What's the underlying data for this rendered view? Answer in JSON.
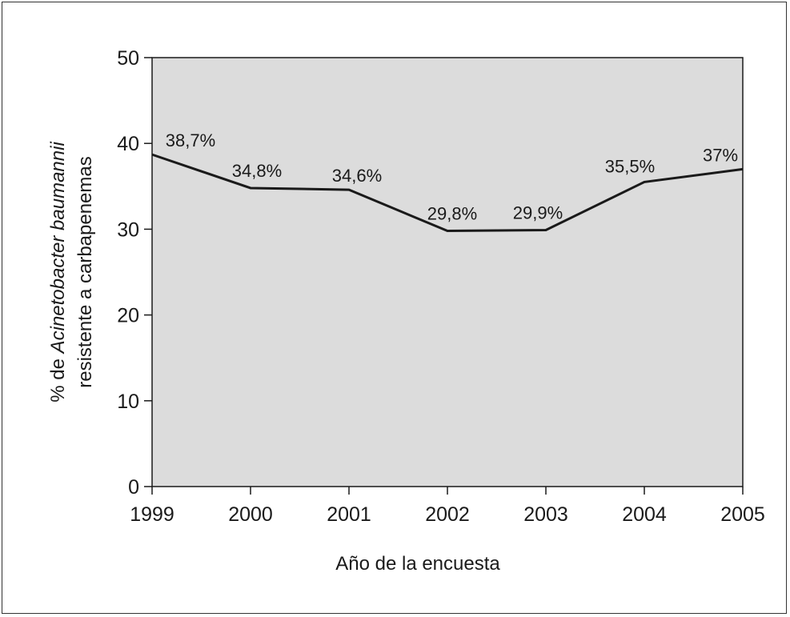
{
  "chart_data": {
    "type": "line",
    "x": [
      "1999",
      "2000",
      "2001",
      "2002",
      "2003",
      "2004",
      "2005"
    ],
    "series": [
      {
        "values": [
          38.7,
          34.8,
          34.6,
          29.8,
          29.9,
          35.5,
          37.0
        ],
        "labels": [
          "38,7%",
          "34,8%",
          "34,6%",
          "29,8%",
          "29,9%",
          "35,5%",
          "37%"
        ]
      }
    ],
    "xlabel": "Año de la encuesta",
    "ylabel": {
      "prefix": "% de ",
      "italic": "Acinetobacter baumannii",
      "line2": "resistente a carbapenemas"
    },
    "ylim": [
      0,
      50
    ],
    "yticks": [
      "0",
      "10",
      "20",
      "30",
      "40",
      "50"
    ],
    "plot_background": "#dcdcdc",
    "line_color": "#1a1a1a",
    "grid": false
  }
}
